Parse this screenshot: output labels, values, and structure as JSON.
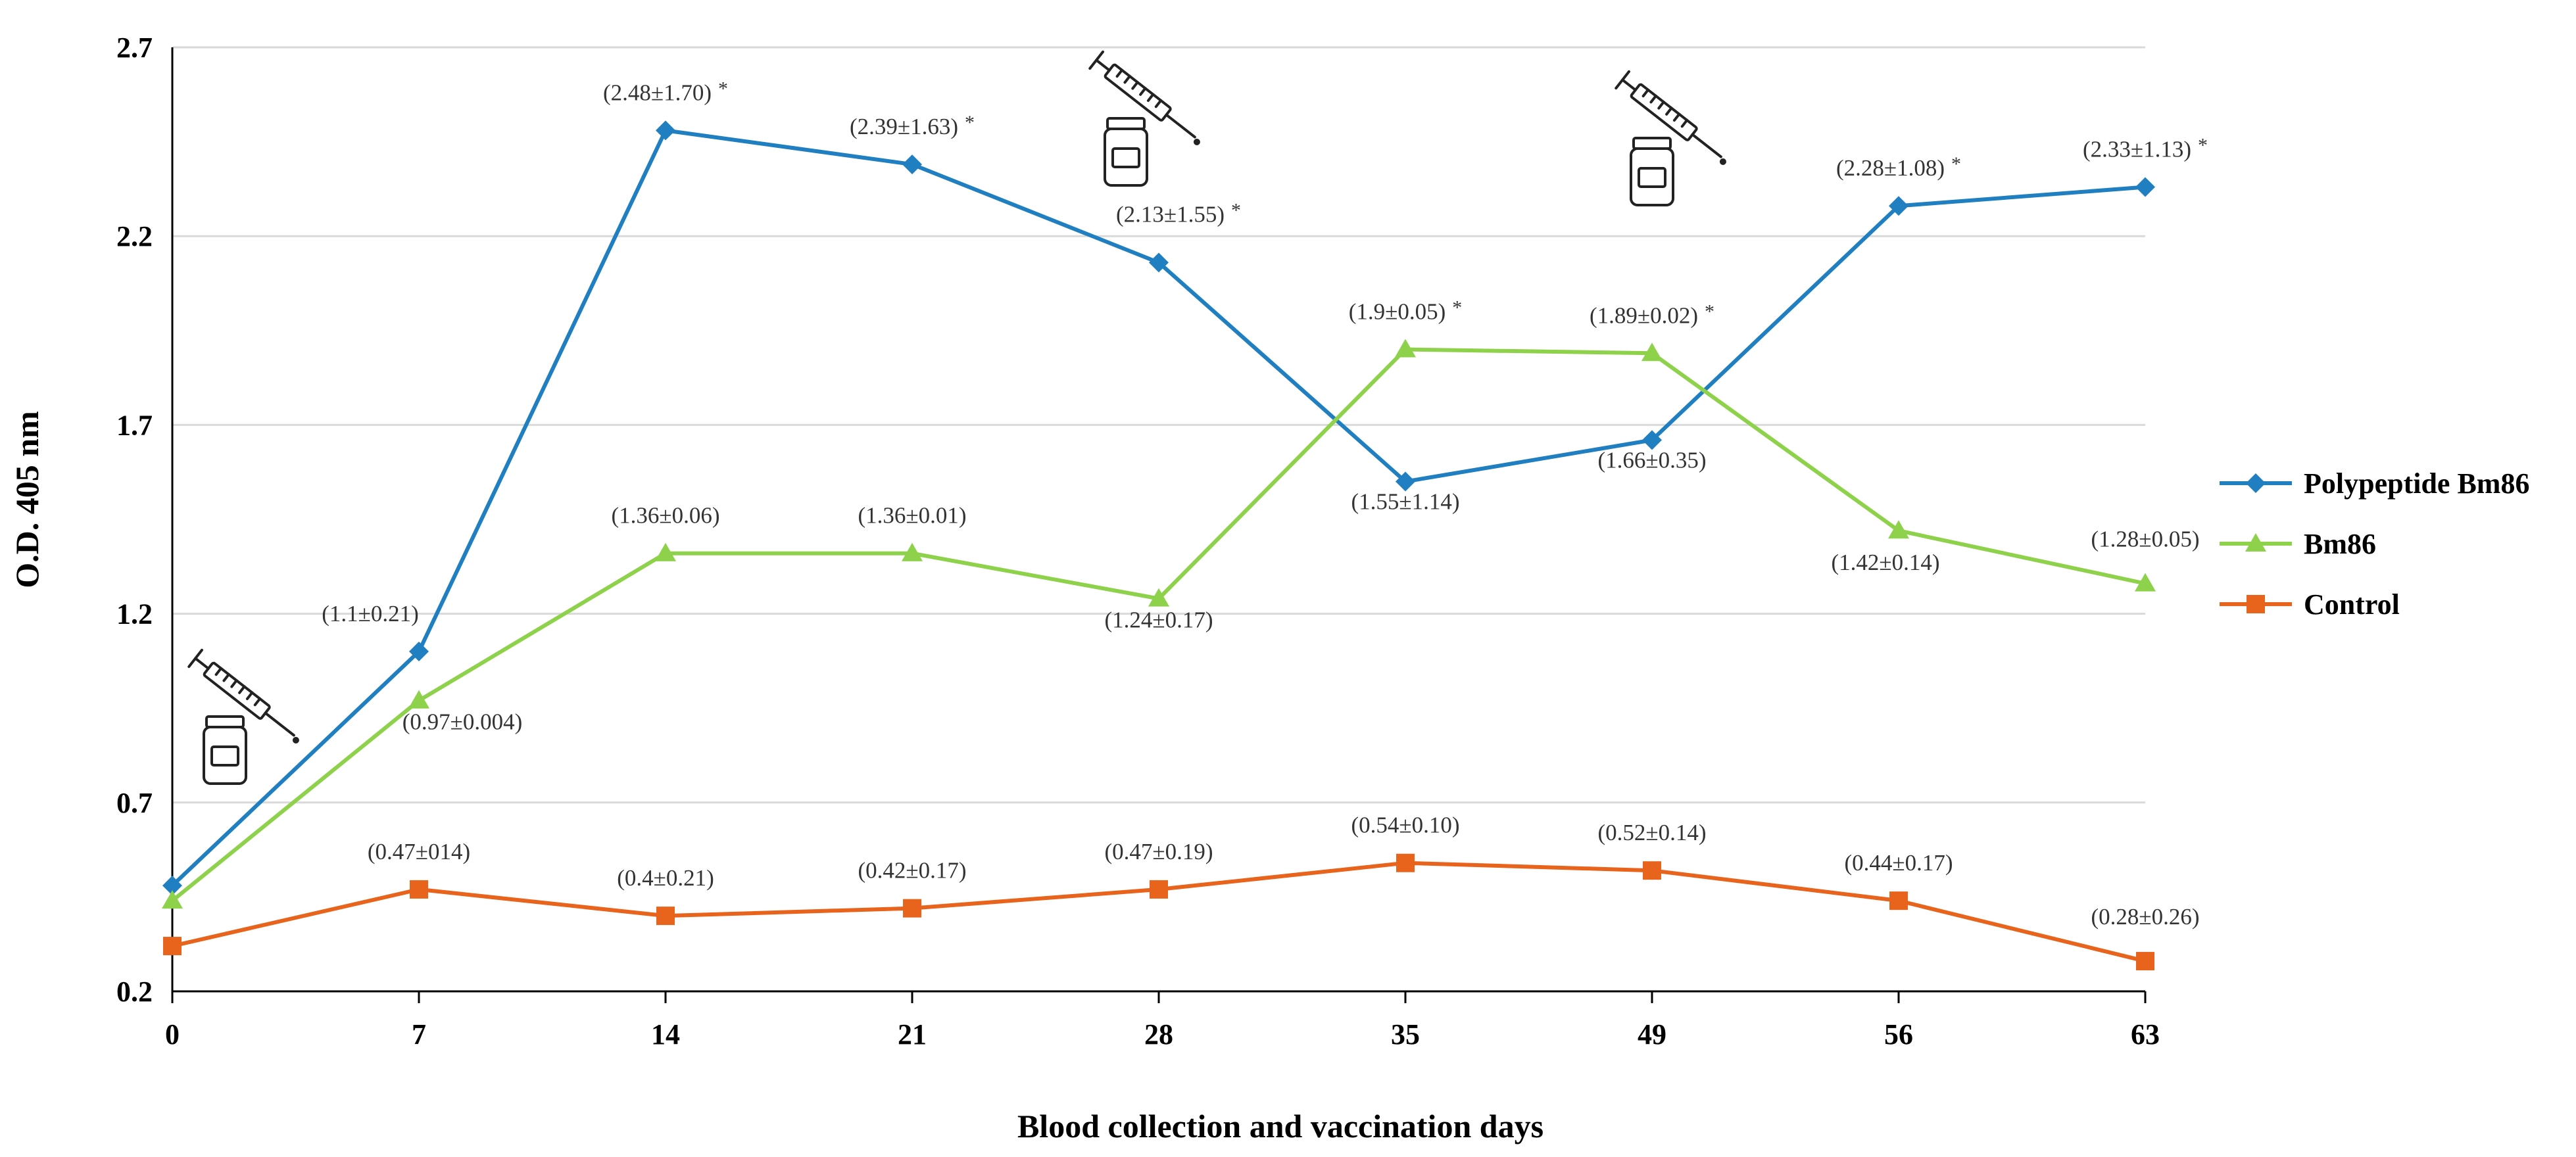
{
  "chart_data": {
    "type": "line",
    "title": "",
    "xlabel": "Blood collection  and vaccination days",
    "ylabel": "O.D. 405 nm",
    "categories": [
      "0",
      "7",
      "14",
      "21",
      "28",
      "35",
      "49",
      "56",
      "63"
    ],
    "yticks": [
      "0.2",
      "0.7",
      "1.2",
      "1.7",
      "2.2",
      "2.7"
    ],
    "ylim": [
      0.2,
      2.7
    ],
    "grid": "horizontal",
    "legend_position": "right",
    "series": [
      {
        "name": "Polypeptide Bm86",
        "color": "#1f7fc0",
        "marker": "diamond",
        "values": [
          0.48,
          1.1,
          2.48,
          2.39,
          2.13,
          1.55,
          1.66,
          2.28,
          2.33
        ],
        "labels": [
          "",
          "(1.1±0.21)",
          "(2.48±1.70)",
          "(2.39±1.63)",
          "(2.13±1.55)",
          "(1.55±1.14)",
          "(1.66±0.35)",
          "(2.28±1.08)",
          "(2.33±1.13)"
        ],
        "sig": [
          "",
          "",
          "*",
          "*",
          "*",
          "",
          "",
          "*",
          "*"
        ]
      },
      {
        "name": "Bm86",
        "color": "#8ed14a",
        "marker": "triangle",
        "values": [
          0.44,
          0.97,
          1.36,
          1.36,
          1.24,
          1.9,
          1.89,
          1.42,
          1.28
        ],
        "labels": [
          "",
          "(0.97±0.004)",
          "(1.36±0.06)",
          "(1.36±0.01)",
          "(1.24±0.17)",
          "(1.9±0.05)",
          "(1.89±0.02)",
          "(1.42±0.14)",
          "(1.28±0.05)"
        ],
        "sig": [
          "",
          "",
          "",
          "",
          "",
          "*",
          "*",
          "",
          ""
        ]
      },
      {
        "name": "Control",
        "color": "#e8631b",
        "marker": "square",
        "values": [
          0.32,
          0.47,
          0.4,
          0.42,
          0.47,
          0.54,
          0.52,
          0.44,
          0.28
        ],
        "labels": [
          "",
          "(0.47±014)",
          "(0.4±0.21)",
          "(0.42±0.17)",
          "(0.47±0.19)",
          "(0.54±0.10)",
          "(0.52±0.14)",
          "(0.44±0.17)",
          "(0.28±0.26)"
        ],
        "sig": [
          "",
          "",
          "",
          "",
          "",
          "",
          "",
          "",
          ""
        ]
      }
    ],
    "vaccination_marks": [
      "0",
      "28",
      "49"
    ],
    "vaccination_icon": "syringe-vial-icon"
  }
}
